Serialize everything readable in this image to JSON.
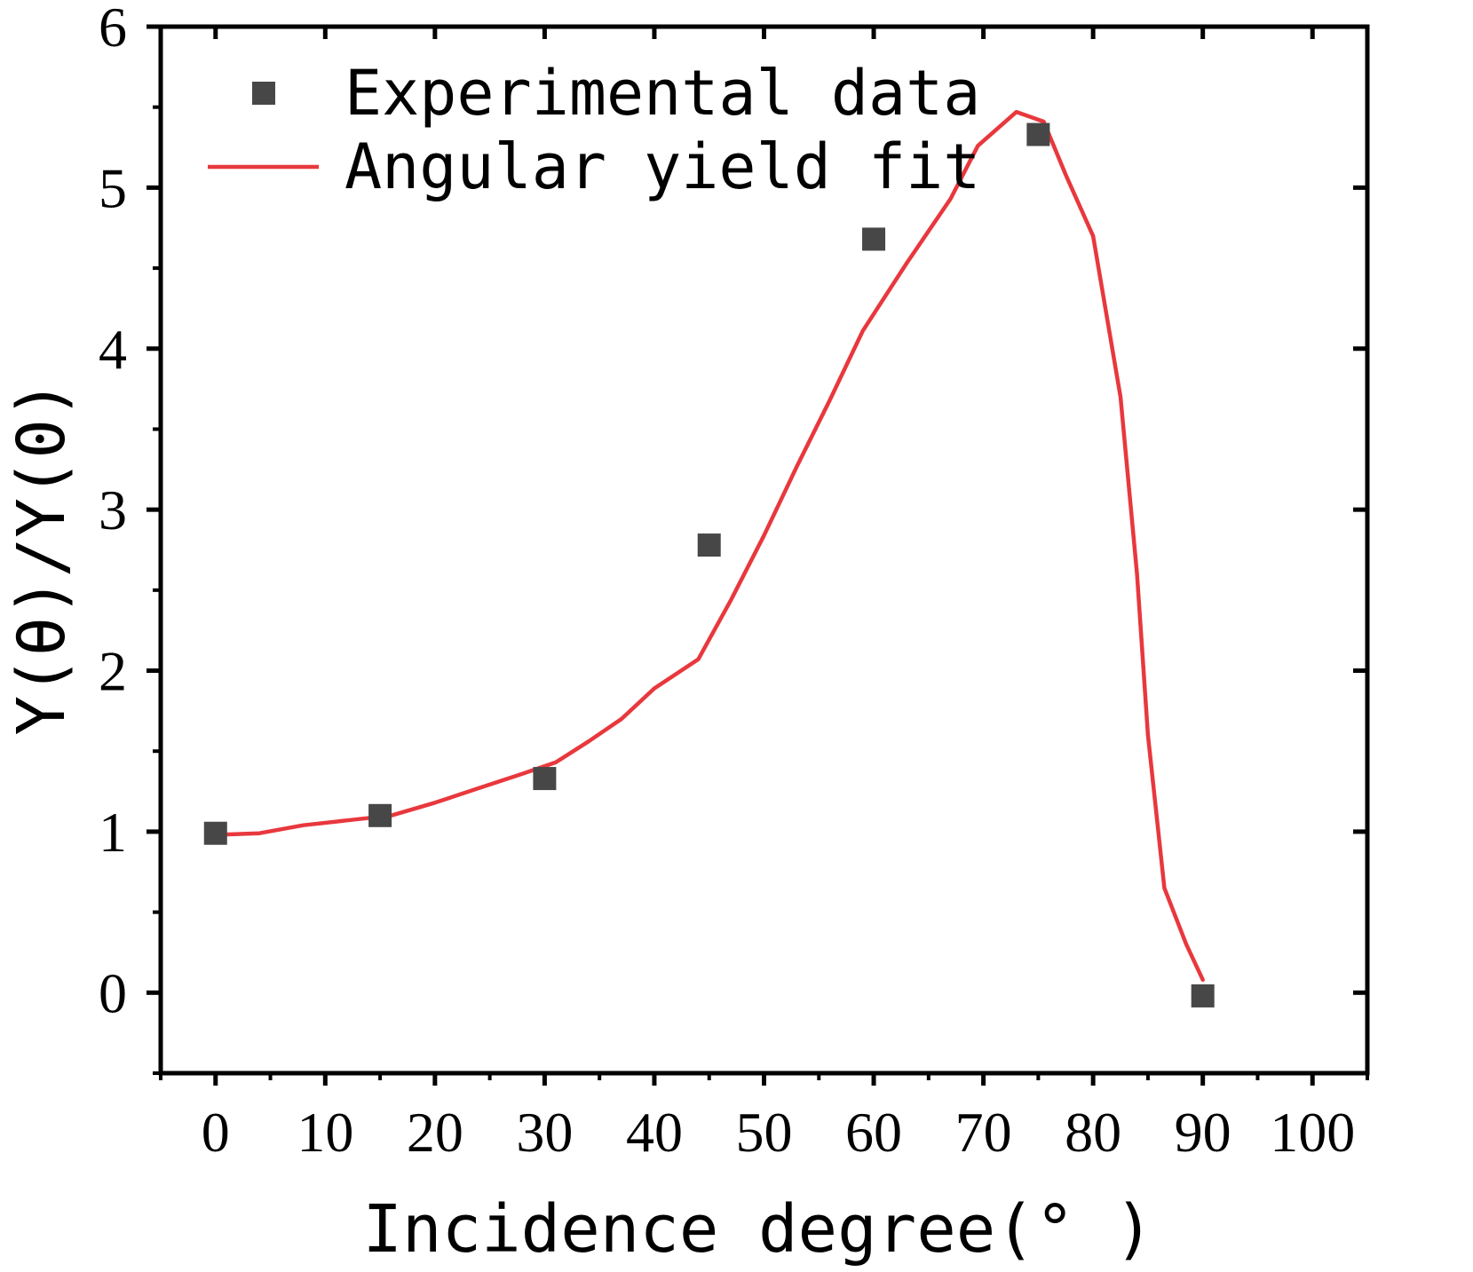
{
  "chart_data": {
    "type": "scatter",
    "title": "",
    "xlabel": "Incidence degree(° )",
    "ylabel": "Y(θ)/Y(0)",
    "xlim": [
      -5,
      105
    ],
    "ylim": [
      -0.5,
      6
    ],
    "x_ticks": [
      0,
      10,
      20,
      30,
      40,
      50,
      60,
      70,
      80,
      90,
      100
    ],
    "x_tick_labels": [
      "0",
      "10",
      "20",
      "30",
      "40",
      "50",
      "60",
      "70",
      "80",
      "90",
      "100"
    ],
    "y_ticks": [
      0,
      1,
      2,
      3,
      4,
      5,
      6
    ],
    "y_tick_labels": [
      "0",
      "1",
      "2",
      "3",
      "4",
      "5",
      "6"
    ],
    "grid": false,
    "legend_position": "top-left",
    "series": [
      {
        "name": "Experimental data",
        "kind": "scatter",
        "marker": "square",
        "color": "#474747",
        "x": [
          0,
          15,
          30,
          45,
          60,
          75,
          90
        ],
        "y": [
          0.99,
          1.1,
          1.33,
          2.78,
          4.68,
          5.33,
          -0.02
        ]
      },
      {
        "name": "Angular yield fit",
        "kind": "line",
        "color": "#e8383d",
        "x": [
          0,
          4,
          8,
          12,
          16,
          20,
          24,
          28,
          31,
          34,
          37,
          40,
          44,
          47,
          50,
          53,
          56,
          59,
          63,
          67,
          69.5,
          73,
          75.5,
          77.5,
          80,
          82.5,
          84,
          85,
          86.5,
          88.5,
          90
        ],
        "y": [
          0.98,
          0.99,
          1.04,
          1.07,
          1.1,
          1.18,
          1.27,
          1.36,
          1.43,
          1.56,
          1.7,
          1.89,
          2.07,
          2.44,
          2.84,
          3.27,
          3.68,
          4.11,
          4.53,
          4.93,
          5.26,
          5.47,
          5.41,
          5.08,
          4.7,
          3.7,
          2.6,
          1.6,
          0.65,
          0.3,
          0.08
        ]
      }
    ]
  }
}
